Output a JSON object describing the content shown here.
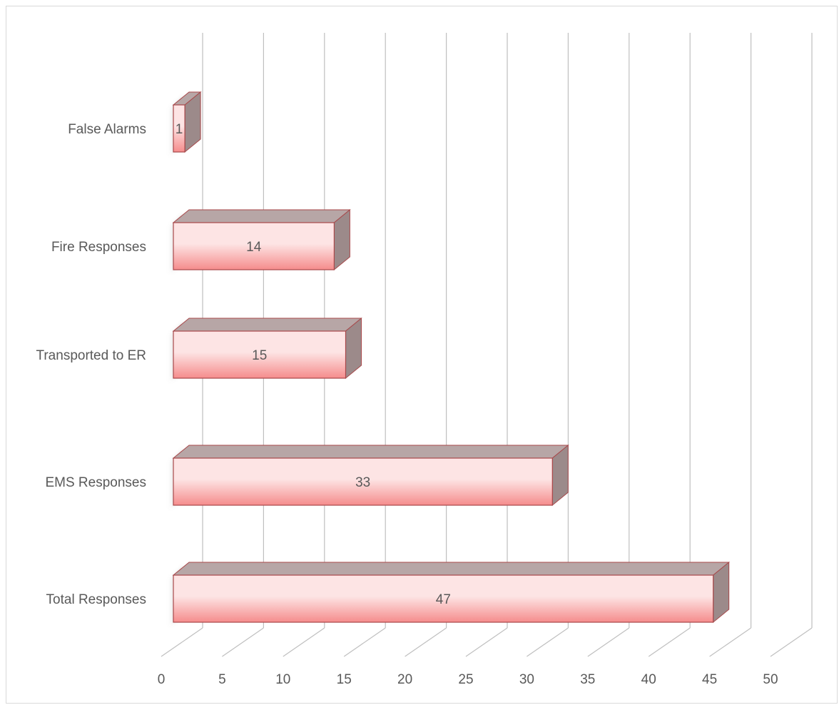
{
  "chart_data": {
    "type": "bar",
    "orientation": "horizontal",
    "style": "3d-clustered-bar",
    "title": "",
    "xlabel": "",
    "ylabel": "",
    "categories": [
      "False Alarms",
      "Fire Responses",
      "Transported to ER",
      "EMS Responses",
      "Total Responses"
    ],
    "values": [
      1,
      14,
      15,
      33,
      47
    ],
    "data_labels": [
      "1",
      "14",
      "15",
      "33",
      "47"
    ],
    "xlim": [
      0,
      50
    ],
    "x_ticks": [
      0,
      5,
      10,
      15,
      20,
      25,
      30,
      35,
      40,
      45,
      50
    ],
    "x_tick_labels": [
      "0",
      "5",
      "10",
      "15",
      "20",
      "25",
      "30",
      "35",
      "40",
      "45",
      "50"
    ],
    "grid": true,
    "legend": "none",
    "colors": {
      "bar_front_top": "#fde4e4",
      "bar_front_bottom": "#f58c8c",
      "bar_side": "#9c8a8a",
      "bar_top": "#b7a6a6",
      "bar_stroke": "#a8484a",
      "gridline": "#bfbfbf",
      "axis_text": "#595959",
      "frame_border": "#d9d9d9"
    }
  }
}
